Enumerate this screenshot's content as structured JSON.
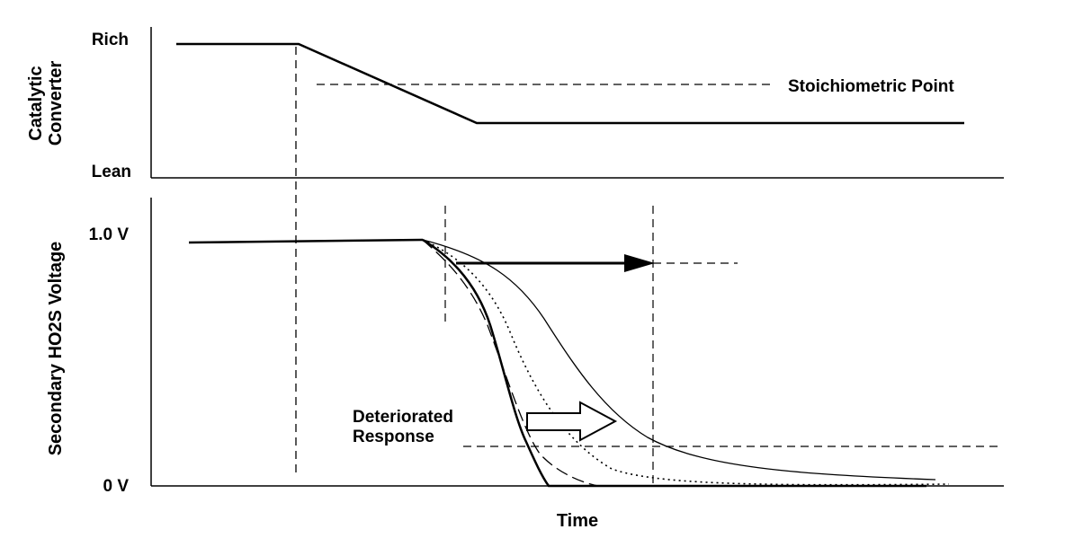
{
  "top_panel": {
    "y_axis_title_line1": "Catalytic",
    "y_axis_title_line2": "Converter",
    "rich_label": "Rich",
    "lean_label": "Lean",
    "stoich_label": "Stoichiometric Point"
  },
  "bottom_panel": {
    "y_axis_title": "Secondary HO2S Voltage",
    "v_high_label": "1.0 V",
    "v_low_label": "0 V",
    "deteriorated_line1": "Deteriorated",
    "deteriorated_line2": "Response"
  },
  "x_axis_label": "Time"
}
